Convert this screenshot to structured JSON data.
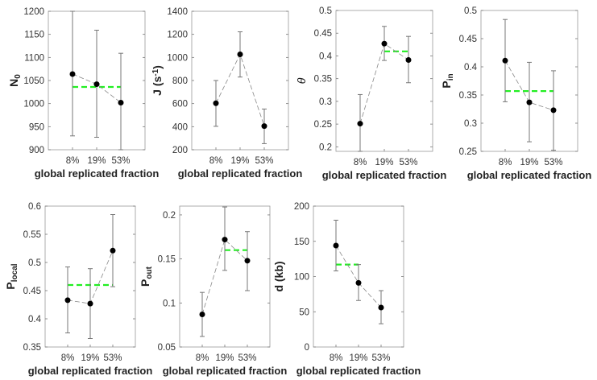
{
  "chart_data": [
    {
      "type": "line",
      "ylabel": [
        {
          "t": "N"
        },
        {
          "t": "0",
          "s": "sub"
        }
      ],
      "xlabel": "global replicated fraction",
      "categories": [
        "8%",
        "19%",
        "53%"
      ],
      "values": [
        1064,
        1042,
        1002
      ],
      "err_low": [
        930,
        927,
        898
      ],
      "err_high": [
        1200,
        1159,
        1109
      ],
      "ylim": [
        900,
        1200
      ],
      "yticks": [
        900,
        950,
        1000,
        1050,
        1100,
        1150,
        1200
      ],
      "mean": {
        "value": 1036,
        "from": 0,
        "to": 2
      }
    },
    {
      "type": "line",
      "ylabel": [
        {
          "t": "J (s"
        },
        {
          "t": "-1",
          "s": "sup"
        },
        {
          "t": ")"
        }
      ],
      "xlabel": "global replicated fraction",
      "categories": [
        "8%",
        "19%",
        "53%"
      ],
      "values": [
        603,
        1027,
        405
      ],
      "err_low": [
        403,
        830,
        253
      ],
      "err_high": [
        800,
        1222,
        553
      ],
      "ylim": [
        200,
        1400
      ],
      "yticks": [
        200,
        400,
        600,
        800,
        1000,
        1200,
        1400
      ],
      "mean": null
    },
    {
      "type": "line",
      "ylabel": [
        {
          "t": "θ",
          "i": true
        }
      ],
      "xlabel": "global replicated fraction",
      "categories": [
        "8%",
        "19%",
        "53%"
      ],
      "values": [
        0.251,
        0.427,
        0.391
      ],
      "err_low": [
        0.188,
        0.39,
        0.341
      ],
      "err_high": [
        0.315,
        0.465,
        0.443
      ],
      "ylim": [
        0.19,
        0.5
      ],
      "yticks": [
        0.2,
        0.25,
        0.3,
        0.35,
        0.4,
        0.45,
        0.5
      ],
      "mean": {
        "value": 0.41,
        "from": 1,
        "to": 2
      }
    },
    {
      "type": "line",
      "ylabel": [
        {
          "t": "P"
        },
        {
          "t": "in",
          "s": "sub"
        }
      ],
      "xlabel": "global replicated fraction",
      "categories": [
        "8%",
        "19%",
        "53%"
      ],
      "values": [
        0.411,
        0.337,
        0.323
      ],
      "err_low": [
        0.338,
        0.267,
        0.252
      ],
      "err_high": [
        0.484,
        0.408,
        0.393
      ],
      "ylim": [
        0.25,
        0.5
      ],
      "yticks": [
        0.25,
        0.3,
        0.35,
        0.4,
        0.45,
        0.5
      ],
      "mean": {
        "value": 0.357,
        "from": 0,
        "to": 2
      }
    },
    {
      "type": "line",
      "ylabel": [
        {
          "t": "P"
        },
        {
          "t": "local",
          "s": "sub"
        }
      ],
      "xlabel": "global replicated fraction",
      "categories": [
        "8%",
        "19%",
        "53%"
      ],
      "values": [
        0.433,
        0.427,
        0.521
      ],
      "err_low": [
        0.375,
        0.365,
        0.457
      ],
      "err_high": [
        0.492,
        0.489,
        0.585
      ],
      "ylim": [
        0.35,
        0.6
      ],
      "yticks": [
        0.35,
        0.4,
        0.45,
        0.5,
        0.55,
        0.6
      ],
      "mean": {
        "value": 0.46,
        "from": 0,
        "to": 2
      }
    },
    {
      "type": "line",
      "ylabel": [
        {
          "t": "P"
        },
        {
          "t": "out",
          "s": "sub"
        }
      ],
      "xlabel": "global replicated fraction",
      "categories": [
        "8%",
        "19%",
        "53%"
      ],
      "values": [
        0.087,
        0.172,
        0.148
      ],
      "err_low": [
        0.062,
        0.137,
        0.114
      ],
      "err_high": [
        0.112,
        0.209,
        0.181
      ],
      "ylim": [
        0.05,
        0.21
      ],
      "yticks": [
        0.05,
        0.1,
        0.15,
        0.2
      ],
      "mean": {
        "value": 0.16,
        "from": 1,
        "to": 2
      }
    },
    {
      "type": "line",
      "ylabel": [
        {
          "t": "d (kb)"
        }
      ],
      "xlabel": "global replicated fraction",
      "categories": [
        "8%",
        "19%",
        "53%"
      ],
      "values": [
        144,
        91,
        56
      ],
      "err_low": [
        108,
        66,
        33
      ],
      "err_high": [
        180,
        117,
        80
      ],
      "ylim": [
        0,
        200
      ],
      "yticks": [
        0,
        50,
        100,
        150,
        200
      ],
      "mean": {
        "value": 117,
        "from": 0,
        "to": 1
      }
    }
  ],
  "colors": {
    "mean": "#22ee22",
    "data": "#000000",
    "errorbar": "#777777",
    "connector": "#888888"
  }
}
